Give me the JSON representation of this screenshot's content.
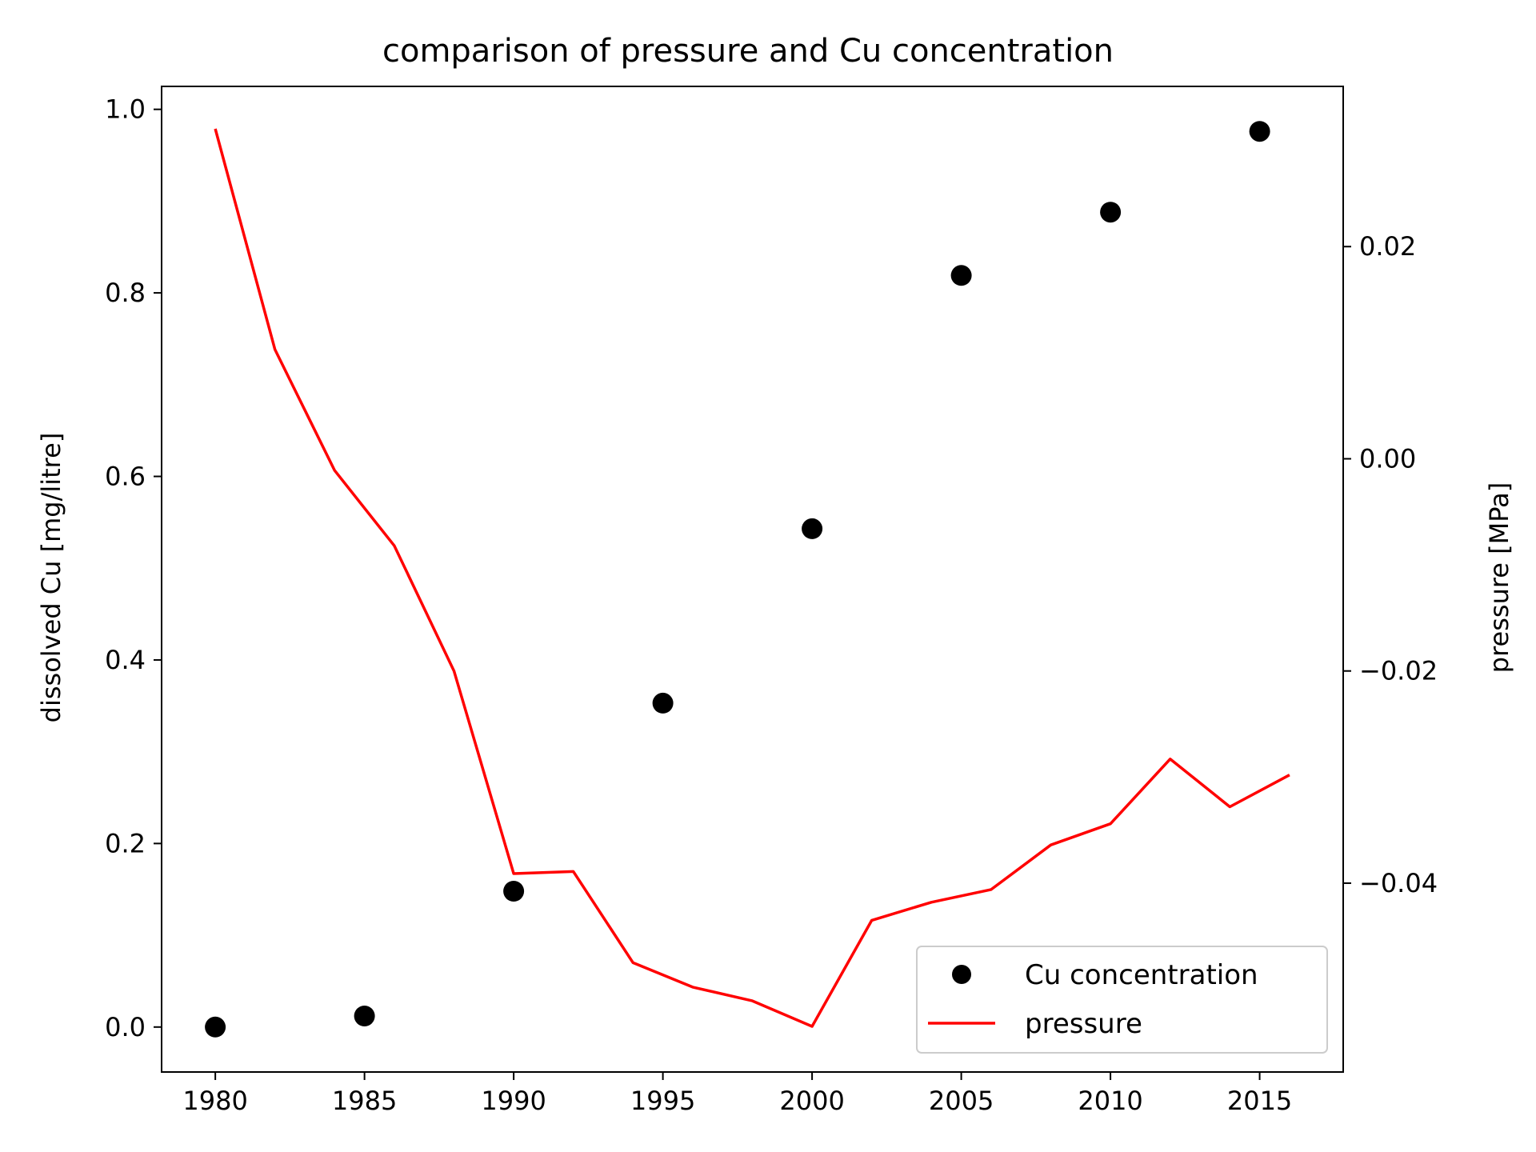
{
  "chart_data": {
    "type": "line",
    "title": "comparison of pressure and Cu concentration",
    "x": {
      "label": "",
      "range": [
        1978.2,
        2017.8
      ],
      "ticks": [
        1980,
        1985,
        1990,
        1995,
        2000,
        2005,
        2010,
        2015
      ],
      "tick_labels": [
        "1980",
        "1985",
        "1990",
        "1995",
        "2000",
        "2005",
        "2010",
        "2015"
      ]
    },
    "y_left": {
      "label": "dissolved Cu [mg/litre]",
      "range": [
        -0.049,
        1.025
      ],
      "ticks": [
        0.0,
        0.2,
        0.4,
        0.6,
        0.8,
        1.0
      ],
      "tick_labels": [
        "0.0",
        "0.2",
        "0.4",
        "0.6",
        "0.8",
        "1.0"
      ]
    },
    "y_right": {
      "label": "pressure [MPa]",
      "range": [
        -0.0578,
        0.0351
      ],
      "ticks": [
        -0.04,
        -0.02,
        0.0,
        0.02
      ],
      "tick_labels": [
        "−0.04",
        "−0.02",
        "0.00",
        "0.02"
      ]
    },
    "grid": false,
    "legend": {
      "position": "lower-right",
      "entries": [
        "Cu concentration",
        "pressure"
      ]
    },
    "series": [
      {
        "name": "Cu concentration",
        "kind": "scatter",
        "axis": "left",
        "color": "#000000",
        "x": [
          1980,
          1985,
          1990,
          1995,
          2000,
          2005,
          2010,
          2015
        ],
        "values": [
          0.0,
          0.012,
          0.148,
          0.353,
          0.543,
          0.819,
          0.888,
          0.976
        ]
      },
      {
        "name": "pressure",
        "kind": "line",
        "axis": "right",
        "color": "#ff0000",
        "x": [
          1980,
          1982,
          1984,
          1986,
          1988,
          1990,
          1992,
          1994,
          1996,
          1998,
          2000,
          2002,
          2004,
          2006,
          2008,
          2010,
          2012,
          2014,
          2016
        ],
        "values": [
          0.0311,
          0.0103,
          -0.0011,
          -0.0082,
          -0.02,
          -0.0391,
          -0.0389,
          -0.0475,
          -0.0498,
          -0.0511,
          -0.0535,
          -0.0435,
          -0.0418,
          -0.0406,
          -0.0364,
          -0.0344,
          -0.0283,
          -0.0328,
          -0.0298
        ]
      }
    ]
  }
}
